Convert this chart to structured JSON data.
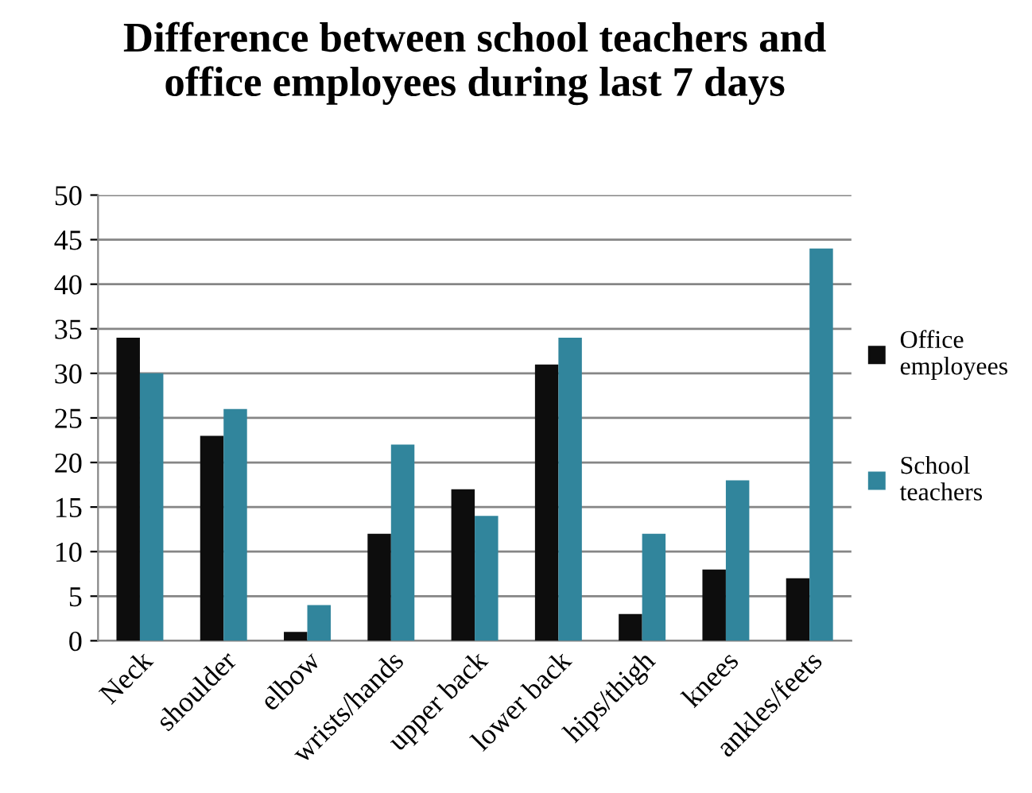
{
  "chart_data": {
    "type": "bar",
    "title": "Difference between school teachers and\noffice employees during last 7 days",
    "categories": [
      "Neck",
      "shoulder",
      "elbow",
      "wrists/hands",
      "upper back",
      "lower back",
      "hips/thigh",
      "knees",
      "ankles/feets"
    ],
    "series": [
      {
        "name": "Office\nemployees",
        "color": "#0d0d0d",
        "values": [
          34,
          23,
          1,
          12,
          17,
          31,
          3,
          8,
          7
        ]
      },
      {
        "name": "School\nteachers",
        "color": "#31859c",
        "values": [
          30,
          26,
          4,
          22,
          14,
          34,
          12,
          18,
          44
        ]
      }
    ],
    "ylim": [
      0,
      50
    ],
    "yticks": [
      0,
      5,
      10,
      15,
      20,
      25,
      30,
      35,
      40,
      45,
      50
    ],
    "grid": "y",
    "legend": "right"
  }
}
